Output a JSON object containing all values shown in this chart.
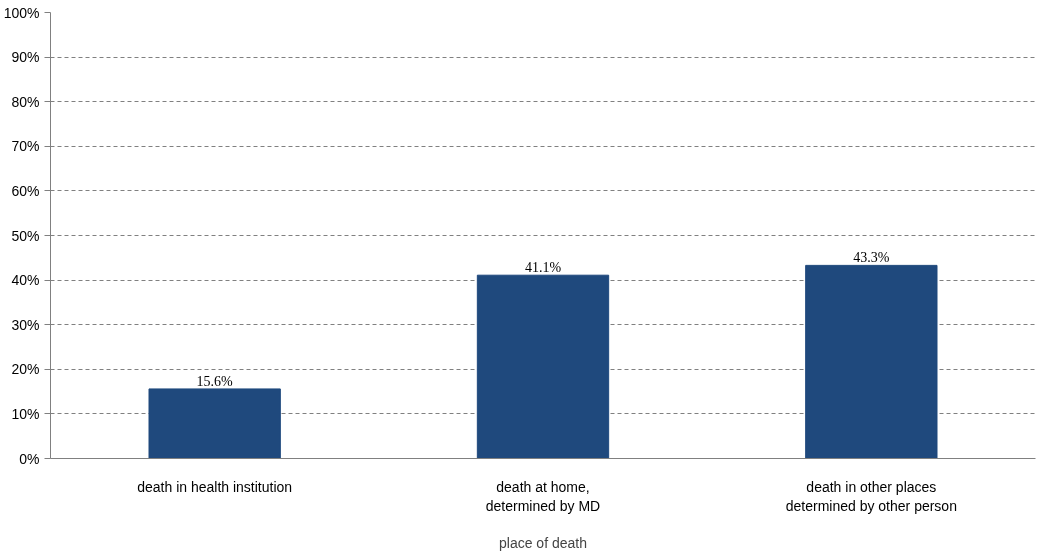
{
  "chart_data": {
    "type": "bar",
    "categories": [
      "death in health institution",
      "death at home,\ndetermined by MD",
      "death in other places\ndetermined by other person"
    ],
    "values": [
      15.6,
      41.1,
      43.3
    ],
    "color": "#1f497d",
    "xlabel": "place of death",
    "ylim": [
      0,
      100
    ],
    "yticks": [
      {
        "value": 0,
        "label": "0%"
      },
      {
        "value": 10,
        "label": "10%"
      },
      {
        "value": 20,
        "label": "20%"
      },
      {
        "value": 30,
        "label": "30%"
      },
      {
        "value": 40,
        "label": "40%"
      },
      {
        "value": 50,
        "label": "50%"
      },
      {
        "value": 60,
        "label": "60%"
      },
      {
        "value": 70,
        "label": "70%"
      },
      {
        "value": 80,
        "label": "80%"
      },
      {
        "value": 90,
        "label": "90%"
      },
      {
        "value": 100,
        "label": "100%"
      }
    ],
    "value_labels": [
      "15.6%",
      "41.1%",
      "43.3%"
    ],
    "grid": "y"
  }
}
